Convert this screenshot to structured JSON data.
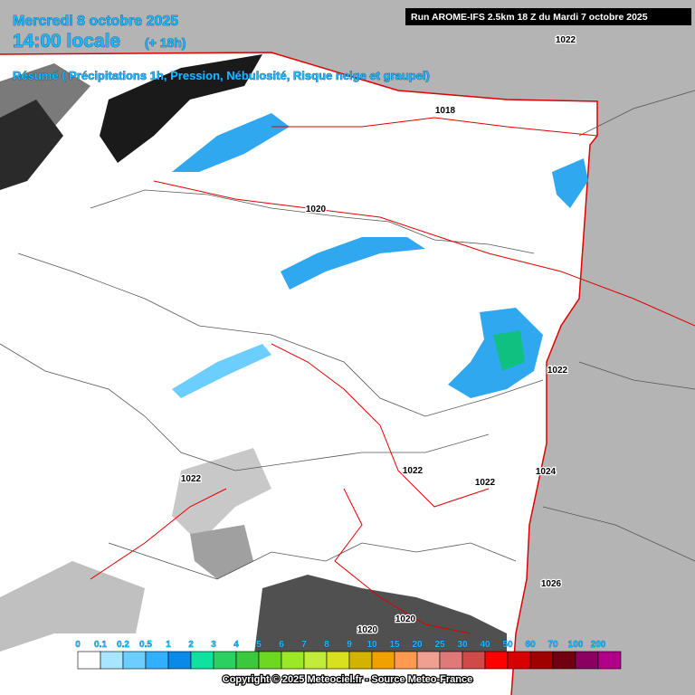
{
  "header": {
    "date": "Mercredi 8 octobre 2025",
    "time": "14:00 locale",
    "lead": "(+ 18h)",
    "summary": "Résumé ( Précipitations 1h, Pression, Nébulosité, Risque neige et graupel)",
    "run": "Run AROME-IFS 2.5km 18 Z du Mardi 7 octobre 2025"
  },
  "isobar_labels": [
    "1022",
    "1018",
    "1020",
    "1022",
    "1022",
    "1022",
    "1022",
    "1024",
    "1026",
    "1020",
    "1020"
  ],
  "legend": {
    "labels": [
      "0",
      "0.1",
      "0.2",
      "0.5",
      "1",
      "2",
      "3",
      "4",
      "5",
      "6",
      "7",
      "8",
      "9",
      "10",
      "15",
      "20",
      "25",
      "30",
      "40",
      "50",
      "60",
      "70",
      "100",
      "200"
    ],
    "colors": [
      "#ffffff",
      "#a8e6ff",
      "#6ccdff",
      "#30b0ff",
      "#0a8ae8",
      "#10e0a0",
      "#2ad060",
      "#3cc83c",
      "#6cd820",
      "#9ae828",
      "#c2ec3c",
      "#d8e020",
      "#d2b400",
      "#f0a000",
      "#ff9a50",
      "#f0a090",
      "#e07a7a",
      "#d04a4a",
      "#ff0000",
      "#d80000",
      "#a00000",
      "#700010",
      "#8a0060",
      "#b0008a",
      "#d800c8",
      "#ff00ff"
    ]
  },
  "copyright": "Copyright © 2025 Meteociel.fr - Source Meteo-France"
}
